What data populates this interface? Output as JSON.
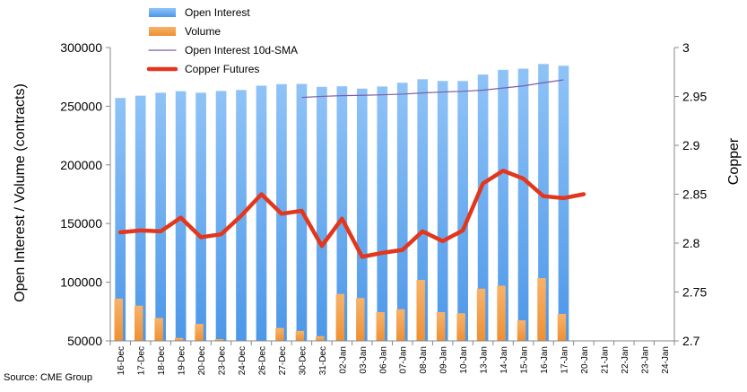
{
  "chart_data": {
    "type": "bar",
    "categories": [
      "16-Dec",
      "17-Dec",
      "18-Dec",
      "19-Dec",
      "20-Dec",
      "23-Dec",
      "24-Dec",
      "26-Dec",
      "27-Dec",
      "30-Dec",
      "31-Dec",
      "02-Jan",
      "03-Jan",
      "06-Jan",
      "07-Jan",
      "08-Jan",
      "09-Jan",
      "10-Jan",
      "13-Jan",
      "14-Jan",
      "15-Jan",
      "16-Jan",
      "17-Jan",
      "20-Jan",
      "21-Jan",
      "22-Jan",
      "23-Jan",
      "24-Jan"
    ],
    "series": [
      {
        "name": "Open Interest",
        "type": "bar",
        "axis": "left",
        "color": "#5fa6ee",
        "values": [
          257000,
          259000,
          261500,
          262800,
          261500,
          263000,
          263800,
          267500,
          268800,
          269000,
          266500,
          267000,
          265000,
          266800,
          270000,
          273000,
          271500,
          271500,
          277000,
          281000,
          282000,
          286000,
          284500,
          null,
          null,
          null,
          null,
          null
        ]
      },
      {
        "name": "Volume",
        "type": "bar",
        "axis": "left",
        "color": "#f3a04b",
        "values": [
          86000,
          80000,
          69500,
          52500,
          64500,
          51500,
          49000,
          43000,
          61000,
          58500,
          54000,
          90000,
          86500,
          74500,
          77000,
          102000,
          74500,
          73500,
          94500,
          97000,
          67500,
          103500,
          73000,
          null,
          null,
          null,
          null,
          null
        ]
      },
      {
        "name": "Open Interest 10d-SMA",
        "type": "line",
        "axis": "left",
        "color": "#7b5ea7",
        "values": [
          null,
          null,
          null,
          null,
          null,
          null,
          null,
          null,
          null,
          257500,
          258400,
          259000,
          259300,
          259700,
          260300,
          261300,
          262100,
          262700,
          263700,
          265500,
          267300,
          270000,
          272500,
          null,
          null,
          null,
          null,
          null
        ]
      },
      {
        "name": "Copper Futures",
        "type": "line",
        "axis": "right",
        "color": "#e2371c",
        "values": [
          2.811,
          2.813,
          2.812,
          2.826,
          2.806,
          2.809,
          2.828,
          2.85,
          2.83,
          2.833,
          2.797,
          2.825,
          2.786,
          2.79,
          2.793,
          2.812,
          2.802,
          2.813,
          2.861,
          2.874,
          2.866,
          2.848,
          2.846,
          2.85,
          null,
          null,
          null,
          null
        ]
      }
    ],
    "ylabel": "Open Interest / Volume (contracts)",
    "y2label": "Copper",
    "ylim": [
      50000,
      300000
    ],
    "y2lim": [
      2.7,
      3.0
    ],
    "yticks": [
      "50000",
      "100000",
      "150000",
      "200000",
      "250000",
      "300000"
    ],
    "y2ticks": [
      "2.7",
      "2.75",
      "2.8",
      "2.85",
      "2.9",
      "2.95",
      "3"
    ],
    "legend_position": "top-left",
    "grid": false,
    "source": "Source: CME Group"
  }
}
